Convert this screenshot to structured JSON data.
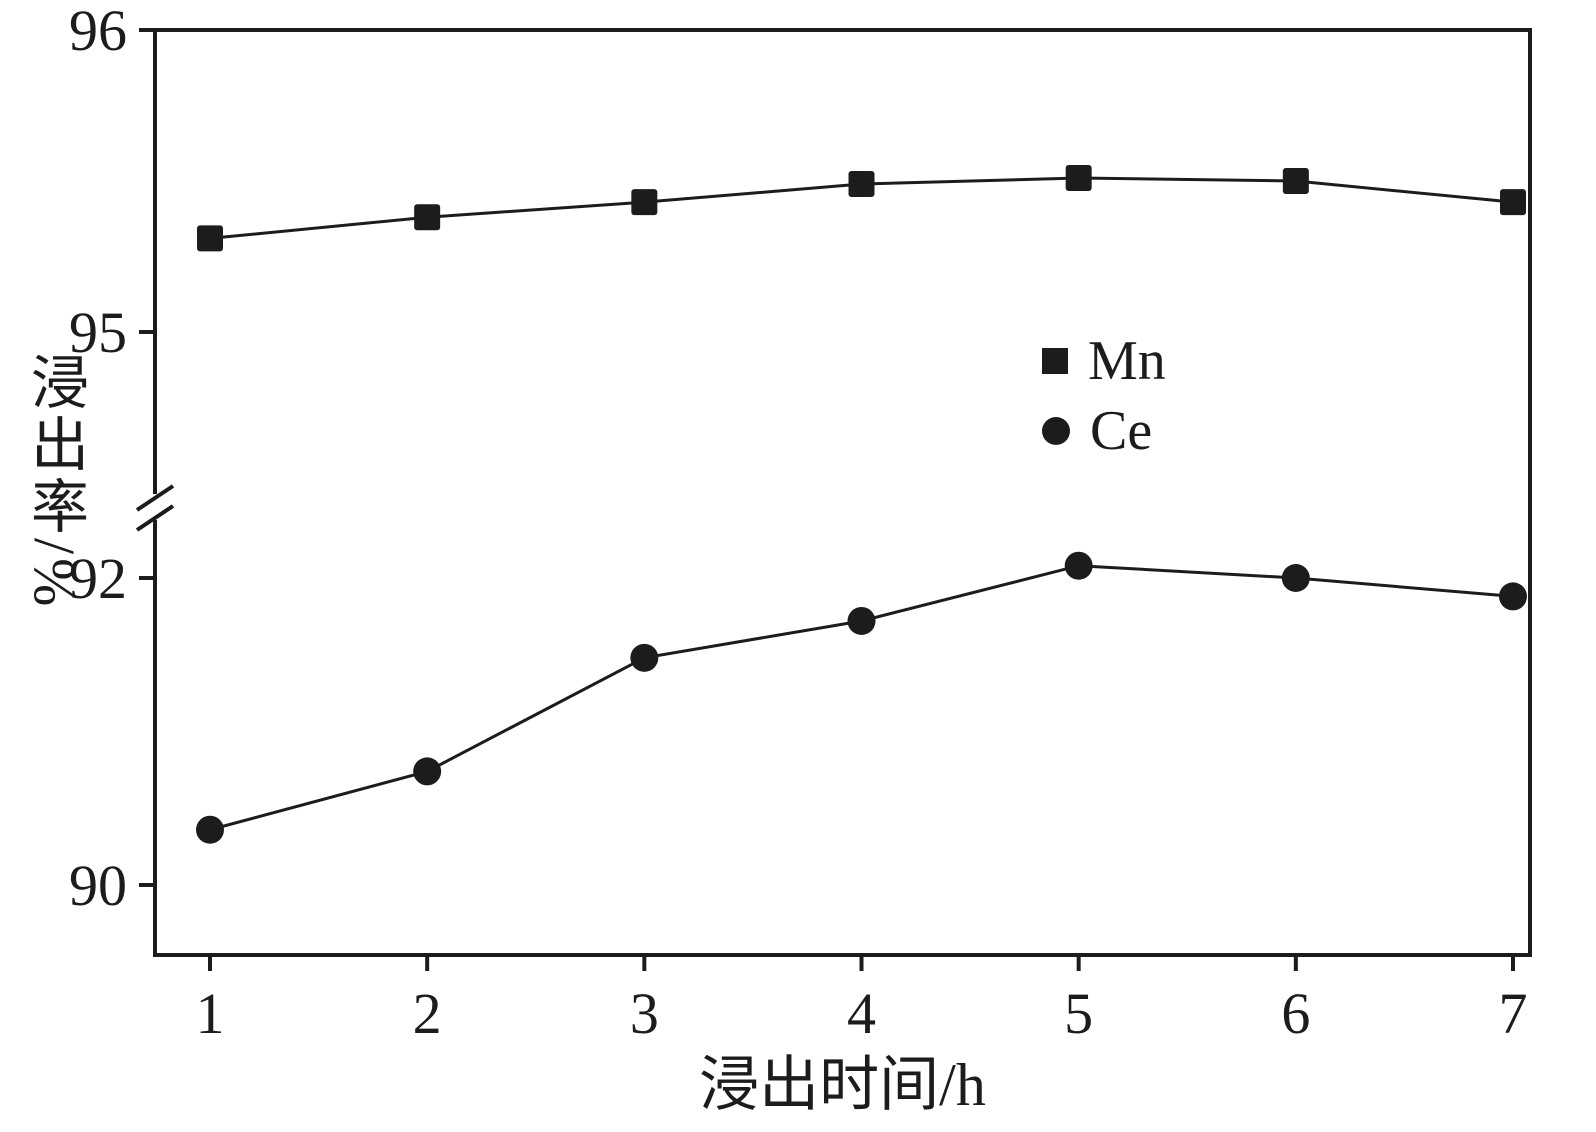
{
  "figure": {
    "background": "#ffffff",
    "axis_color": "#1c1c1c"
  },
  "chart_data": {
    "type": "line",
    "x": [
      1,
      2,
      3,
      4,
      5,
      6,
      7
    ],
    "x_tick_labels": [
      "1",
      "2",
      "3",
      "4",
      "5",
      "6",
      "7"
    ],
    "xlabel": "浸出时间/h",
    "ylabel": "浸出率/%",
    "grid": false,
    "y_axis_break": true,
    "segments": {
      "top": {
        "range": [
          95,
          96
        ]
      },
      "bottom": {
        "range": [
          90,
          92.3
        ]
      }
    },
    "y_ticks": [
      {
        "label": "96",
        "value": 96,
        "segment": "top"
      },
      {
        "label": "95",
        "value": 95,
        "segment": "top"
      },
      {
        "label": "92",
        "value": 92,
        "segment": "bottom"
      },
      {
        "label": "90",
        "value": 90,
        "segment": "bottom"
      }
    ],
    "series": [
      {
        "name": "Mn",
        "marker": "square",
        "segment": "top",
        "values": [
          95.31,
          95.38,
          95.43,
          95.49,
          95.51,
          95.5,
          95.43
        ]
      },
      {
        "name": "Ce",
        "marker": "circle",
        "segment": "bottom",
        "values": [
          90.36,
          90.74,
          91.48,
          91.72,
          92.08,
          92.0,
          91.88
        ]
      }
    ],
    "legend": {
      "position": "inside-right-middle",
      "entries": [
        "Mn",
        "Ce"
      ]
    }
  }
}
